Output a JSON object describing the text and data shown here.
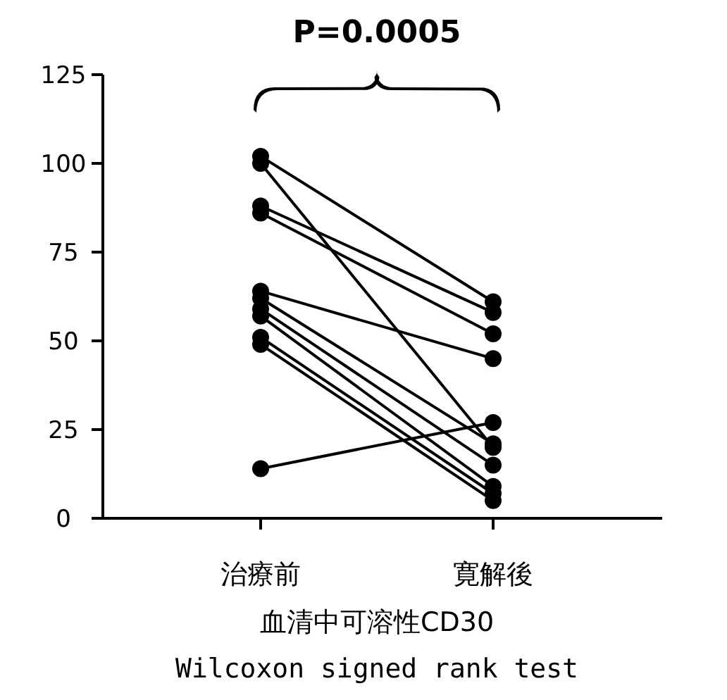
{
  "chart_data": {
    "type": "line",
    "categories": [
      "治療前",
      "寛解後"
    ],
    "series": [
      {
        "color": "#000000",
        "values": [
          102,
          61
        ]
      },
      {
        "color": "#000000",
        "values": [
          100,
          20
        ]
      },
      {
        "color": "#000000",
        "values": [
          88,
          58
        ]
      },
      {
        "color": "#000000",
        "values": [
          86,
          52
        ]
      },
      {
        "color": "#000000",
        "values": [
          64,
          45
        ]
      },
      {
        "color": "#000000",
        "values": [
          62,
          21
        ]
      },
      {
        "color": "#000000",
        "values": [
          59,
          15
        ]
      },
      {
        "color": "#000000",
        "values": [
          57,
          9
        ]
      },
      {
        "color": "#000000",
        "values": [
          51,
          7
        ]
      },
      {
        "color": "#000000",
        "values": [
          49,
          5
        ]
      },
      {
        "color": "#000000",
        "values": [
          14,
          27
        ]
      }
    ],
    "ylim": [
      0,
      125
    ],
    "yticks": [
      0,
      25,
      50,
      75,
      100,
      125
    ],
    "marker": "circle",
    "line_style": "solid",
    "grid": false,
    "xlabel": "血清中可溶性CD30",
    "annotations": [
      "P=0.0005",
      "Wilcoxon signed rank test"
    ]
  }
}
